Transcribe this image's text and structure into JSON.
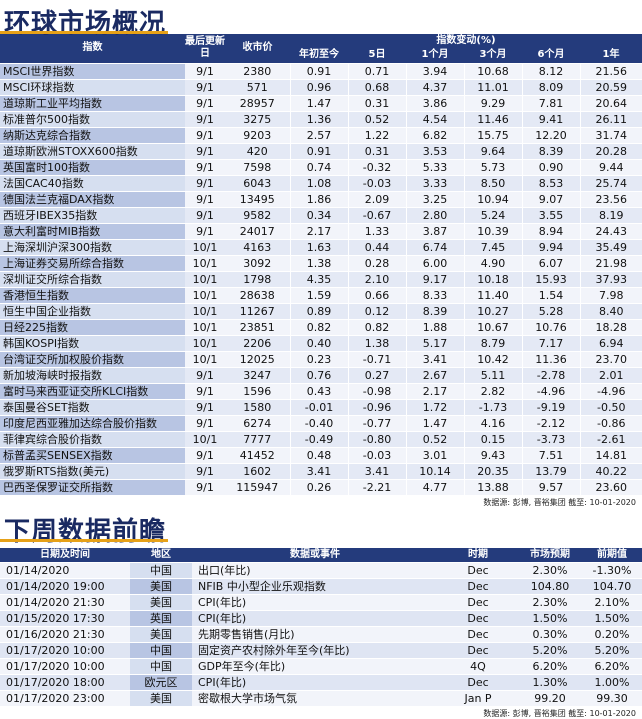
{
  "market": {
    "title": "环球市场概况",
    "headers": {
      "index": "指数",
      "last_update": "最后更新日",
      "close": "收市价",
      "change_group": "指数变动(%)",
      "ytd": "年初至今",
      "d5": "5日",
      "m1": "1个月",
      "m3": "3个月",
      "m6": "6个月",
      "y1": "1年"
    },
    "rows": [
      {
        "name": "MSCI世界指数",
        "date": "9/1",
        "close": "2380",
        "ytd": "0.91",
        "d5": "0.71",
        "m1": "3.94",
        "m3": "10.68",
        "m6": "8.12",
        "y1": "21.56"
      },
      {
        "name": "MSCI环球指数",
        "date": "9/1",
        "close": "571",
        "ytd": "0.96",
        "d5": "0.68",
        "m1": "4.37",
        "m3": "11.01",
        "m6": "8.09",
        "y1": "20.59"
      },
      {
        "name": "道琼斯工业平均指数",
        "date": "9/1",
        "close": "28957",
        "ytd": "1.47",
        "d5": "0.31",
        "m1": "3.86",
        "m3": "9.29",
        "m6": "7.81",
        "y1": "20.64"
      },
      {
        "name": "标准普尔500指数",
        "date": "9/1",
        "close": "3275",
        "ytd": "1.36",
        "d5": "0.52",
        "m1": "4.54",
        "m3": "11.46",
        "m6": "9.41",
        "y1": "26.11"
      },
      {
        "name": "纳斯达克综合指数",
        "date": "9/1",
        "close": "9203",
        "ytd": "2.57",
        "d5": "1.22",
        "m1": "6.82",
        "m3": "15.75",
        "m6": "12.20",
        "y1": "31.74"
      },
      {
        "name": "道琼斯欧洲STOXX600指数",
        "date": "9/1",
        "close": "420",
        "ytd": "0.91",
        "d5": "0.31",
        "m1": "3.53",
        "m3": "9.64",
        "m6": "8.39",
        "y1": "20.28"
      },
      {
        "name": "英国富时100指数",
        "date": "9/1",
        "close": "7598",
        "ytd": "0.74",
        "d5": "-0.32",
        "m1": "5.33",
        "m3": "5.73",
        "m6": "0.90",
        "y1": "9.44"
      },
      {
        "name": "法国CAC40指数",
        "date": "9/1",
        "close": "6043",
        "ytd": "1.08",
        "d5": "-0.03",
        "m1": "3.33",
        "m3": "8.50",
        "m6": "8.53",
        "y1": "25.74"
      },
      {
        "name": "德国法兰克福DAX指数",
        "date": "9/1",
        "close": "13495",
        "ytd": "1.86",
        "d5": "2.09",
        "m1": "3.25",
        "m3": "10.94",
        "m6": "9.07",
        "y1": "23.56"
      },
      {
        "name": "西班牙IBEX35指数",
        "date": "9/1",
        "close": "9582",
        "ytd": "0.34",
        "d5": "-0.67",
        "m1": "2.80",
        "m3": "5.24",
        "m6": "3.55",
        "y1": "8.19"
      },
      {
        "name": "意大利富时MIB指数",
        "date": "9/1",
        "close": "24017",
        "ytd": "2.17",
        "d5": "1.33",
        "m1": "3.87",
        "m3": "10.39",
        "m6": "8.94",
        "y1": "24.43"
      },
      {
        "name": "上海深圳沪深300指数",
        "date": "10/1",
        "close": "4163",
        "ytd": "1.63",
        "d5": "0.44",
        "m1": "6.74",
        "m3": "7.45",
        "m6": "9.94",
        "y1": "35.49"
      },
      {
        "name": "上海证券交易所综合指数",
        "date": "10/1",
        "close": "3092",
        "ytd": "1.38",
        "d5": "0.28",
        "m1": "6.00",
        "m3": "4.90",
        "m6": "6.07",
        "y1": "21.98"
      },
      {
        "name": "深圳证交所综合指数",
        "date": "10/1",
        "close": "1798",
        "ytd": "4.35",
        "d5": "2.10",
        "m1": "9.17",
        "m3": "10.18",
        "m6": "15.93",
        "y1": "37.93"
      },
      {
        "name": "香港恒生指数",
        "date": "10/1",
        "close": "28638",
        "ytd": "1.59",
        "d5": "0.66",
        "m1": "8.33",
        "m3": "11.40",
        "m6": "1.54",
        "y1": "7.98"
      },
      {
        "name": "恒生中国企业指数",
        "date": "10/1",
        "close": "11267",
        "ytd": "0.89",
        "d5": "0.12",
        "m1": "8.39",
        "m3": "10.27",
        "m6": "5.28",
        "y1": "8.40"
      },
      {
        "name": "日经225指数",
        "date": "10/1",
        "close": "23851",
        "ytd": "0.82",
        "d5": "0.82",
        "m1": "1.88",
        "m3": "10.67",
        "m6": "10.76",
        "y1": "18.28"
      },
      {
        "name": "韩国KOSPI指数",
        "date": "10/1",
        "close": "2206",
        "ytd": "0.40",
        "d5": "1.38",
        "m1": "5.17",
        "m3": "8.79",
        "m6": "7.17",
        "y1": "6.94"
      },
      {
        "name": "台湾证交所加权股价指数",
        "date": "10/1",
        "close": "12025",
        "ytd": "0.23",
        "d5": "-0.71",
        "m1": "3.41",
        "m3": "10.42",
        "m6": "11.36",
        "y1": "23.70"
      },
      {
        "name": "新加坡海峡时报指数",
        "date": "9/1",
        "close": "3247",
        "ytd": "0.76",
        "d5": "0.27",
        "m1": "2.67",
        "m3": "5.11",
        "m6": "-2.78",
        "y1": "2.01"
      },
      {
        "name": "富时马来西亚证交所KLCI指数",
        "date": "9/1",
        "close": "1596",
        "ytd": "0.43",
        "d5": "-0.98",
        "m1": "2.17",
        "m3": "2.82",
        "m6": "-4.96",
        "y1": "-4.96"
      },
      {
        "name": "泰国曼谷SET指数",
        "date": "9/1",
        "close": "1580",
        "ytd": "-0.01",
        "d5": "-0.96",
        "m1": "1.72",
        "m3": "-1.73",
        "m6": "-9.19",
        "y1": "-0.50"
      },
      {
        "name": "印度尼西亚雅加达综合股价指数",
        "date": "9/1",
        "close": "6274",
        "ytd": "-0.40",
        "d5": "-0.77",
        "m1": "1.47",
        "m3": "4.16",
        "m6": "-2.12",
        "y1": "-0.86"
      },
      {
        "name": "菲律宾综合股价指数",
        "date": "10/1",
        "close": "7777",
        "ytd": "-0.49",
        "d5": "-0.80",
        "m1": "0.52",
        "m3": "0.15",
        "m6": "-3.73",
        "y1": "-2.61"
      },
      {
        "name": "标普孟买SENSEX指数",
        "date": "9/1",
        "close": "41452",
        "ytd": "0.48",
        "d5": "-0.03",
        "m1": "3.01",
        "m3": "9.43",
        "m6": "7.51",
        "y1": "14.81"
      },
      {
        "name": "俄罗斯RTS指数(美元)",
        "date": "9/1",
        "close": "1602",
        "ytd": "3.41",
        "d5": "3.41",
        "m1": "10.14",
        "m3": "20.35",
        "m6": "13.79",
        "y1": "40.22"
      },
      {
        "name": "巴西圣保罗证交所指数",
        "date": "9/1",
        "close": "115947",
        "ytd": "0.26",
        "d5": "-2.21",
        "m1": "4.77",
        "m3": "13.88",
        "m6": "9.57",
        "y1": "23.60"
      }
    ],
    "source": "数据源: 彭博, 晋裕集团 截至: 10-01-2020"
  },
  "calendar": {
    "title": "下周数据前瞻",
    "headers": {
      "datetime": "日期及时间",
      "region": "地区",
      "event": "数据或事件",
      "period": "时期",
      "forecast": "市场预期",
      "previous": "前期值"
    },
    "rows": [
      {
        "datetime": "01/14/2020",
        "region": "中国",
        "event": "出口(年比)",
        "period": "Dec",
        "forecast": "2.30%",
        "previous": "-1.30%"
      },
      {
        "datetime": "01/14/2020 19:00",
        "region": "美国",
        "event": "NFIB 中小型企业乐观指数",
        "period": "Dec",
        "forecast": "104.80",
        "previous": "104.70"
      },
      {
        "datetime": "01/14/2020 21:30",
        "region": "美国",
        "event": "CPI(年比)",
        "period": "Dec",
        "forecast": "2.30%",
        "previous": "2.10%"
      },
      {
        "datetime": "01/15/2020 17:30",
        "region": "英国",
        "event": "CPI(年比)",
        "period": "Dec",
        "forecast": "1.50%",
        "previous": "1.50%"
      },
      {
        "datetime": "01/16/2020 21:30",
        "region": "美国",
        "event": "先期零售销售(月比)",
        "period": "Dec",
        "forecast": "0.30%",
        "previous": "0.20%"
      },
      {
        "datetime": "01/17/2020 10:00",
        "region": "中国",
        "event": "固定资产农村除外年至今(年比)",
        "period": "Dec",
        "forecast": "5.20%",
        "previous": "5.20%"
      },
      {
        "datetime": "01/17/2020 10:00",
        "region": "中国",
        "event": "GDP年至今(年比)",
        "period": "4Q",
        "forecast": "6.20%",
        "previous": "6.20%"
      },
      {
        "datetime": "01/17/2020 18:00",
        "region": "欧元区",
        "event": "CPI(年比)",
        "period": "Dec",
        "forecast": "1.30%",
        "previous": "1.00%"
      },
      {
        "datetime": "01/17/2020 23:00",
        "region": "美国",
        "event": "密歇根大学市场气氛",
        "period": "Jan P",
        "forecast": "99.20",
        "previous": "99.30"
      }
    ],
    "source": "数据源: 彭博, 晋裕集团 截至: 10-01-2020"
  }
}
